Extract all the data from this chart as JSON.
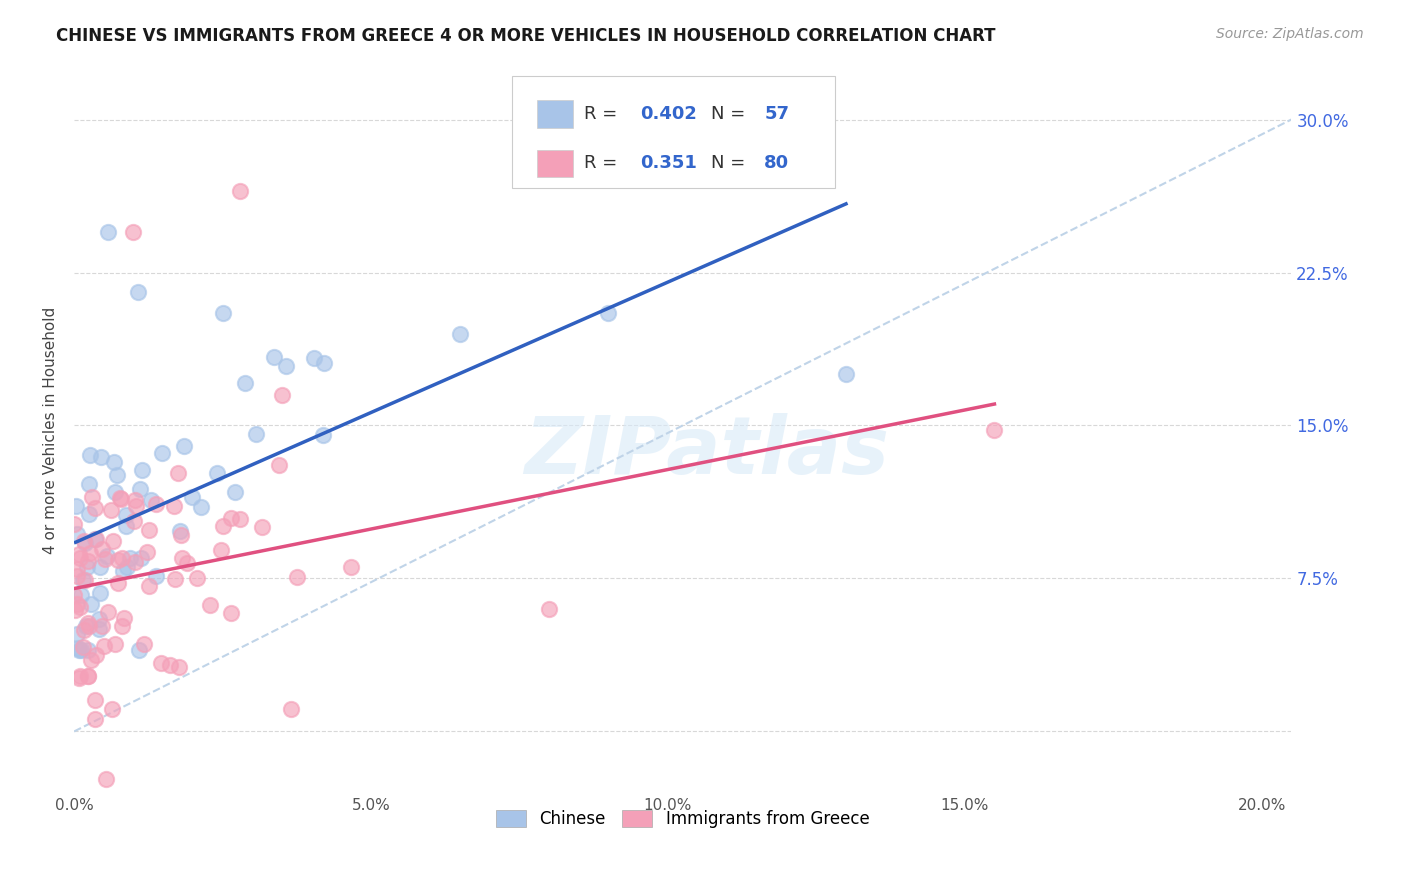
{
  "title": "CHINESE VS IMMIGRANTS FROM GREECE 4 OR MORE VEHICLES IN HOUSEHOLD CORRELATION CHART",
  "source": "Source: ZipAtlas.com",
  "ylabel": "4 or more Vehicles in Household",
  "xlim": [
    0.0,
    0.205
  ],
  "ylim": [
    -0.03,
    0.325
  ],
  "ytick_positions": [
    0.0,
    0.075,
    0.15,
    0.225,
    0.3
  ],
  "ytick_labels": [
    "",
    "7.5%",
    "15.0%",
    "22.5%",
    "30.0%"
  ],
  "chinese_R": 0.402,
  "chinese_N": 57,
  "greece_R": 0.351,
  "greece_N": 80,
  "chinese_color": "#a8c4e8",
  "greece_color": "#f4a0b8",
  "chinese_line_color": "#3060c0",
  "greece_line_color": "#e05080",
  "dashed_line_color": "#c0d4e8",
  "background_color": "#ffffff",
  "grid_color": "#d8d8d8",
  "watermark": "ZIPatlas",
  "seed_chinese": 42,
  "seed_greece": 99
}
